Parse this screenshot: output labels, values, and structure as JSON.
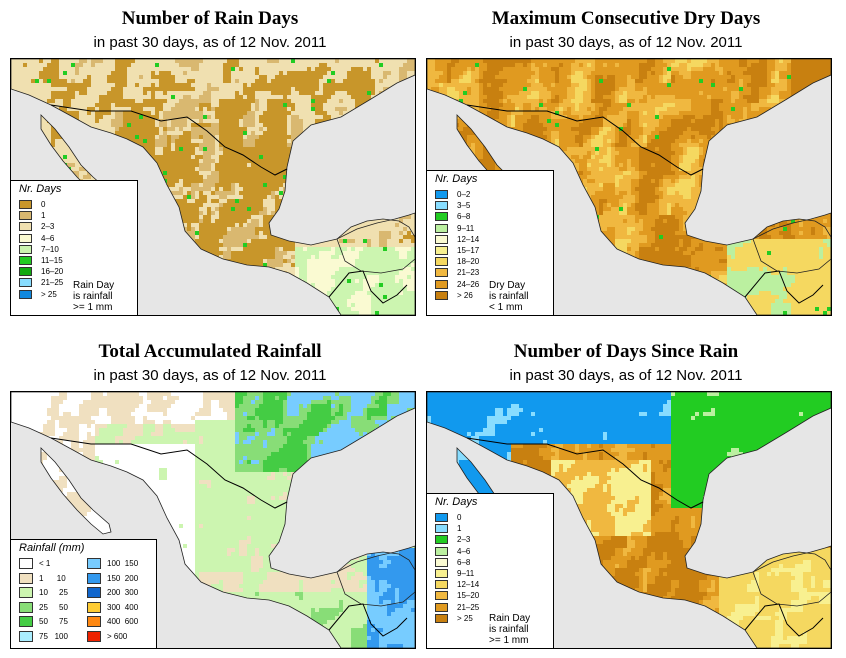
{
  "panels": [
    {
      "title": "Number of Rain Days",
      "subtitle": "in past 30 days, as of  12 Nov. 2011",
      "legend_title": "Nr. Days",
      "legend": [
        {
          "label": "0",
          "color": "#c8962a"
        },
        {
          "label": "1",
          "color": "#d9b870"
        },
        {
          "label": "2–3",
          "color": "#f0e0b0"
        },
        {
          "label": "4–6",
          "color": "#fafad2"
        },
        {
          "label": "7–10",
          "color": "#ccf5b0"
        },
        {
          "label": "11–15",
          "color": "#22cc22"
        },
        {
          "label": "16–20",
          "color": "#11aa11"
        },
        {
          "label": "21–25",
          "color": "#88ddff"
        },
        {
          "label": "> 25",
          "color": "#1188dd"
        }
      ],
      "note": [
        "Rain Day",
        "is rainfall",
        ">= 1 mm"
      ]
    },
    {
      "title": "Maximum Consecutive Dry Days",
      "subtitle": "in past 30 days, as of  12 Nov. 2011",
      "legend_title": "Nr. Days",
      "legend": [
        {
          "label": "0–2",
          "color": "#1199ee"
        },
        {
          "label": "3–5",
          "color": "#88ddff"
        },
        {
          "label": "6–8",
          "color": "#22cc22"
        },
        {
          "label": "9–11",
          "color": "#bbf0a0"
        },
        {
          "label": "12–14",
          "color": "#fafad2"
        },
        {
          "label": "15–17",
          "color": "#f8f090"
        },
        {
          "label": "18–20",
          "color": "#f5d860"
        },
        {
          "label": "21–23",
          "color": "#f0b840"
        },
        {
          "label": "24–26",
          "color": "#e09a20"
        },
        {
          "label": "> 26",
          "color": "#c88010"
        }
      ],
      "note": [
        "Dry Day",
        "is rainfall",
        "< 1 mm"
      ]
    },
    {
      "title": "Total Accumulated Rainfall",
      "subtitle": "in past 30 days, as of  12 Nov. 2011",
      "legend_title": "Rainfall (mm)",
      "legend": [
        {
          "label": "< 1",
          "color": "#ffffff"
        },
        {
          "label": "1      10",
          "color": "#f0e0c0"
        },
        {
          "label": "10     25",
          "color": "#ccf5b0"
        },
        {
          "label": "25     50",
          "color": "#88dd77"
        },
        {
          "label": "50     75",
          "color": "#44cc44"
        },
        {
          "label": "75   100",
          "color": "#aaeeff"
        },
        {
          "label": "100  150",
          "color": "#77ccff"
        },
        {
          "label": "150  200",
          "color": "#3399ee"
        },
        {
          "label": "200  300",
          "color": "#1166cc"
        },
        {
          "label": "300  400",
          "color": "#ffcc33"
        },
        {
          "label": "400  600",
          "color": "#ff8811"
        },
        {
          "label": "> 600",
          "color": "#ee2200"
        }
      ],
      "note": []
    },
    {
      "title": "Number of Days Since Rain",
      "subtitle": "in past 30 days, as of  12 Nov. 2011",
      "legend_title": "Nr. Days",
      "legend": [
        {
          "label": "0",
          "color": "#1199ee"
        },
        {
          "label": "1",
          "color": "#88ddff"
        },
        {
          "label": "2–3",
          "color": "#22cc22"
        },
        {
          "label": "4–6",
          "color": "#bbf0a0"
        },
        {
          "label": "6–8",
          "color": "#fafad2"
        },
        {
          "label": "9–11",
          "color": "#f8f090"
        },
        {
          "label": "12–14",
          "color": "#f5d860"
        },
        {
          "label": "15–20",
          "color": "#f0b840"
        },
        {
          "label": "21–25",
          "color": "#e09a20"
        },
        {
          "label": "> 25",
          "color": "#c88010"
        }
      ],
      "note": [
        "Rain Day",
        "is rainfall",
        ">= 1 mm"
      ]
    }
  ]
}
